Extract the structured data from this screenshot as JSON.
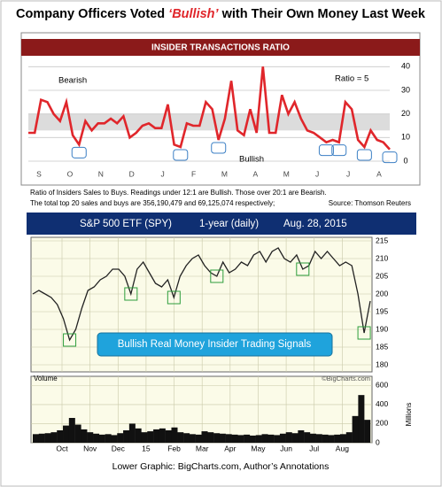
{
  "header": {
    "title": [
      "Company Officers Voted ",
      "‘Bullish’",
      " with Their Own Money Last Week"
    ]
  },
  "footer": "Lower Graphic: BigCharts.com, Author’s Annotations",
  "chart_data": [
    {
      "type": "line",
      "title": "INSIDER TRANSACTIONS RATIO",
      "xlabels": [
        "S",
        "O",
        "N",
        "D",
        "J",
        "F",
        "M",
        "A",
        "M",
        "J",
        "J",
        "A"
      ],
      "values": [
        12,
        12,
        26,
        25,
        20,
        17,
        25,
        11,
        7,
        17,
        13,
        16,
        16,
        18,
        16,
        19,
        10,
        12,
        15,
        16,
        14,
        14,
        24,
        7,
        6,
        16,
        15,
        15,
        25,
        22,
        9,
        18,
        34,
        13,
        11,
        22,
        12,
        40,
        12,
        12,
        28,
        20,
        25,
        18,
        13,
        12,
        10,
        8,
        9,
        8,
        25,
        22,
        9,
        6,
        13,
        9,
        8,
        5
      ],
      "color": "#e0262b",
      "ylim": [
        0,
        42
      ],
      "yticks": [
        0,
        10,
        20,
        30,
        40
      ],
      "band": [
        13,
        20
      ],
      "annotations": {
        "bearish": "Bearish",
        "bullish": "Bullish",
        "ratio": "Ratio = 5"
      },
      "notes": [
        "Ratio of Insiders Sales to Buys. Readings under 12:1 are Bullish. Those over 20:1 are Bearish.",
        "The total top 20 sales and buys are 356,190,479 and 69,125,074 respectively;",
        "Source: Thomson Reuters"
      ]
    },
    {
      "type": "line",
      "title": [
        "S&P 500 ETF (SPY)",
        "1-year (daily)",
        "Aug. 28, 2015"
      ],
      "xlabels": [
        "Oct",
        "Nov",
        "Dec",
        "15",
        "Feb",
        "Mar",
        "Apr",
        "May",
        "Jun",
        "Jul",
        "Aug"
      ],
      "values": [
        200,
        201,
        200,
        199,
        197,
        193,
        187,
        190,
        196,
        201,
        202,
        204,
        205,
        207,
        207,
        205,
        200,
        207,
        209,
        206,
        203,
        202,
        204,
        199,
        205,
        208,
        210,
        211,
        208,
        206,
        205,
        209,
        206,
        207,
        209,
        208,
        211,
        212,
        209,
        212,
        213,
        210,
        209,
        211,
        207,
        208,
        212,
        210,
        212,
        210,
        208,
        209,
        208,
        200,
        189,
        198
      ],
      "color": "#222222",
      "ylim": [
        178,
        216
      ],
      "yticks": [
        180,
        185,
        190,
        195,
        200,
        205,
        210,
        215
      ],
      "annotation": "Bullish Real Money Insider Trading Signals",
      "credit": "©BigCharts.com"
    },
    {
      "type": "bar",
      "title": "Volume",
      "axis_label": "Millions",
      "values": [
        90,
        95,
        100,
        110,
        130,
        180,
        260,
        190,
        140,
        110,
        95,
        85,
        90,
        80,
        100,
        130,
        200,
        150,
        110,
        120,
        140,
        150,
        130,
        160,
        110,
        100,
        90,
        85,
        120,
        110,
        100,
        95,
        90,
        85,
        80,
        85,
        75,
        80,
        90,
        85,
        80,
        95,
        110,
        100,
        130,
        110,
        95,
        90,
        85,
        80,
        85,
        90,
        110,
        280,
        500,
        240
      ],
      "color": "#111111",
      "ylim": [
        0,
        650
      ],
      "yticks": [
        0,
        200,
        400,
        600
      ]
    }
  ]
}
